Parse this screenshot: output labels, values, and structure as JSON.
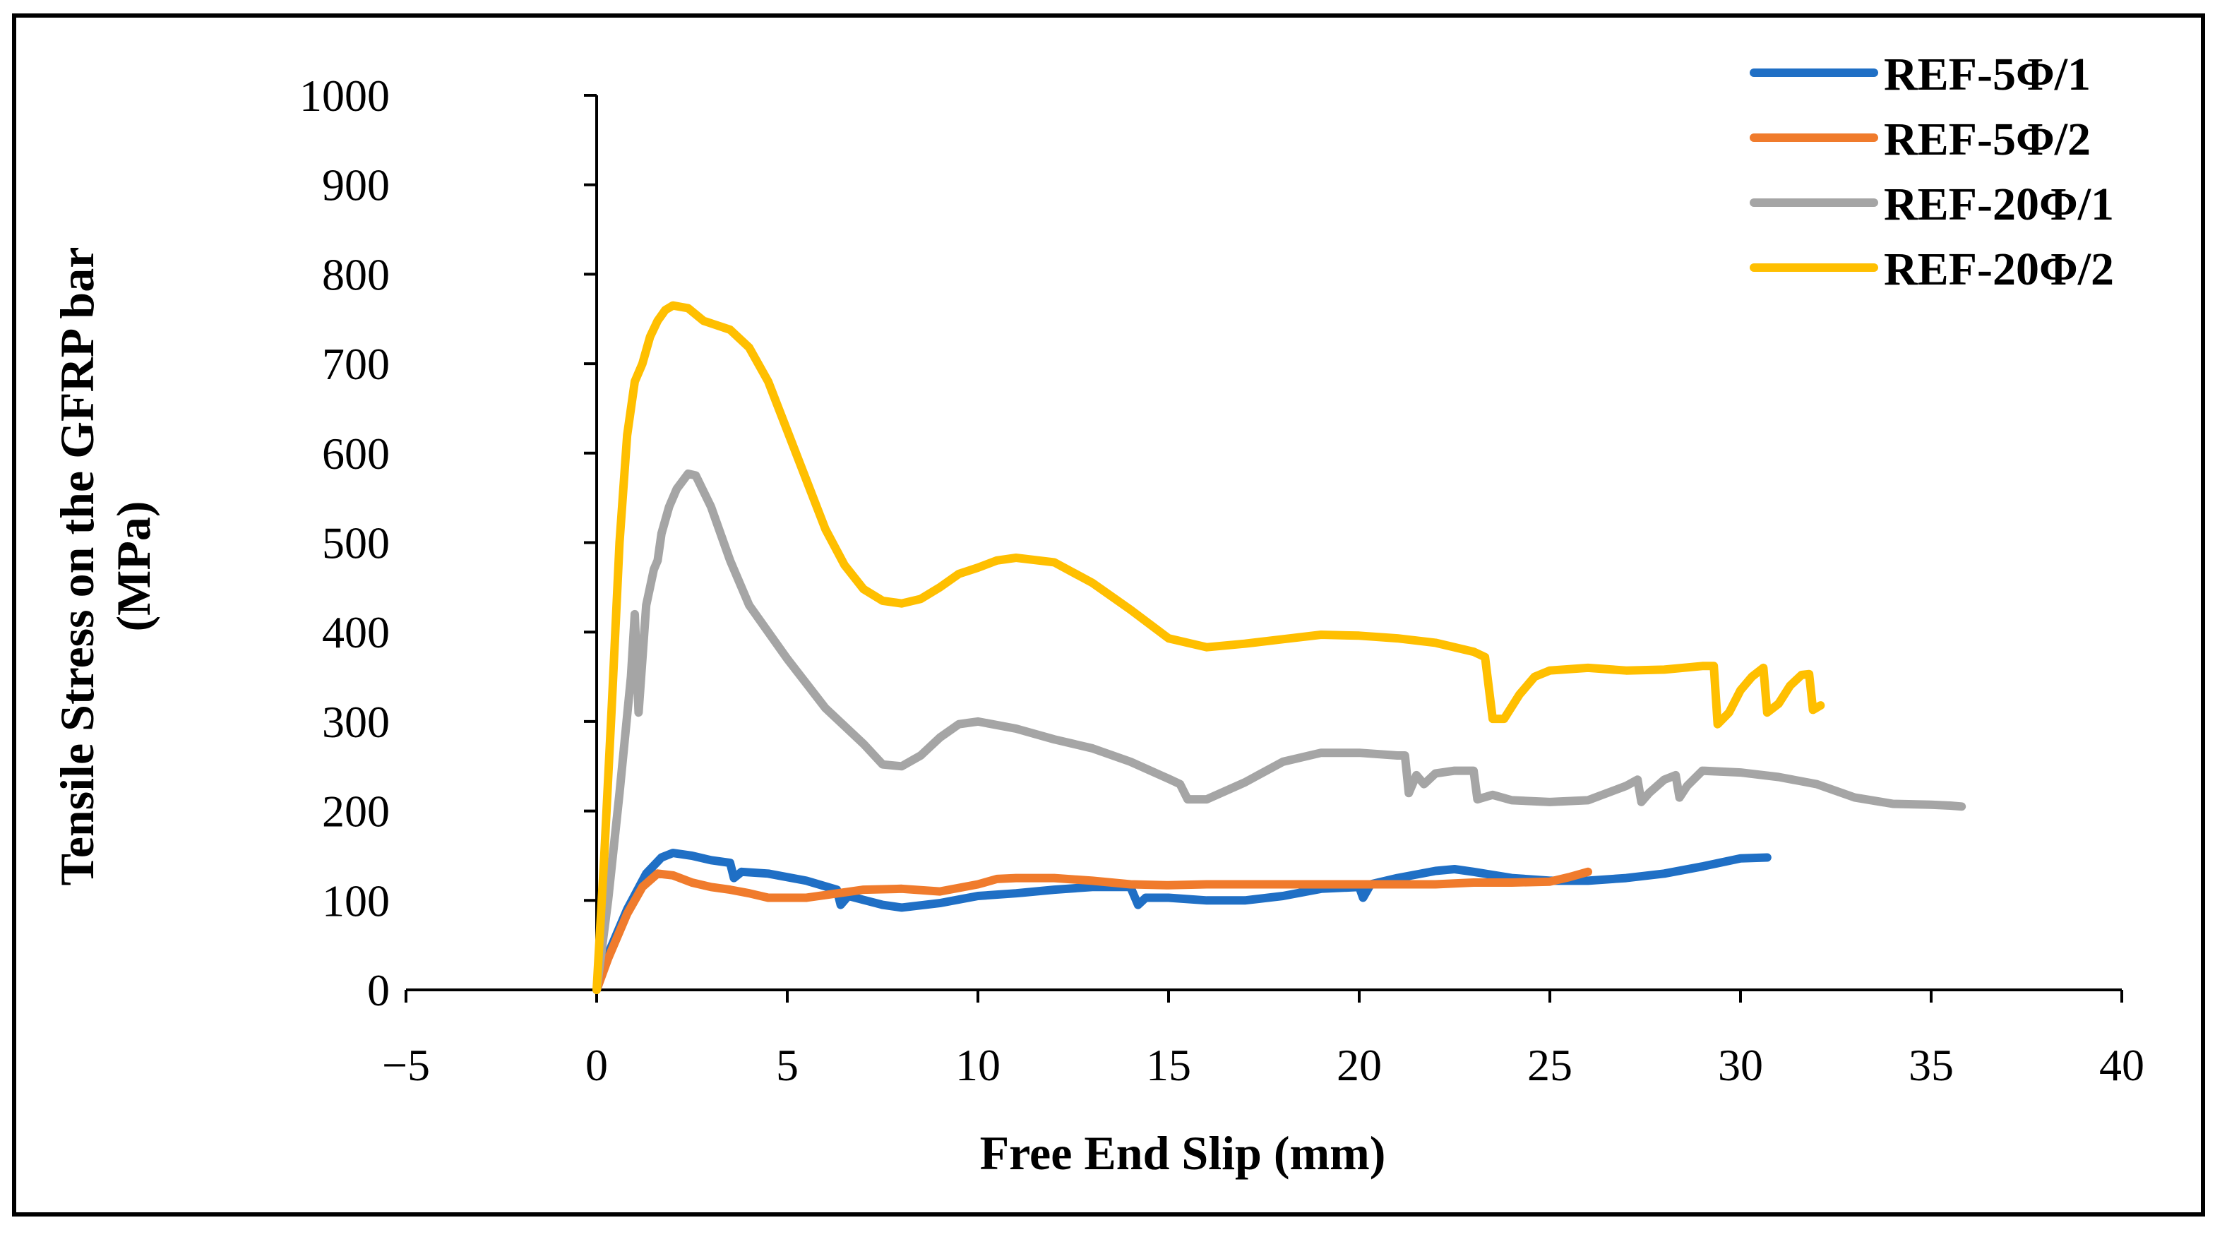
{
  "chart_data": {
    "type": "line",
    "title": "",
    "xlabel": "Free End Slip (mm)",
    "ylabel_lines": [
      "Tensile Stress on the GFRP bar",
      "(MPa)"
    ],
    "xlim": [
      -5,
      40
    ],
    "ylim": [
      0,
      1000
    ],
    "xticks": [
      -5,
      0,
      5,
      10,
      15,
      20,
      25,
      30,
      35,
      40
    ],
    "xtick_labels": [
      "−5",
      "0",
      "5",
      "10",
      "15",
      "20",
      "25",
      "30",
      "35",
      "40"
    ],
    "yticks": [
      0,
      100,
      200,
      300,
      400,
      500,
      600,
      700,
      800,
      900,
      1000
    ],
    "ytick_labels": [
      "0",
      "100",
      "200",
      "300",
      "400",
      "500",
      "600",
      "700",
      "800",
      "900",
      "1000"
    ],
    "grid": false,
    "legend_position": "top-right",
    "series": [
      {
        "name": "REF-5Φ/1",
        "color": "#1f6fc5",
        "points": [
          [
            0,
            0
          ],
          [
            0.3,
            40
          ],
          [
            0.8,
            90
          ],
          [
            1.3,
            130
          ],
          [
            1.7,
            148
          ],
          [
            2.0,
            153
          ],
          [
            2.5,
            150
          ],
          [
            3.0,
            145
          ],
          [
            3.5,
            142
          ],
          [
            3.6,
            125
          ],
          [
            3.8,
            132
          ],
          [
            4.5,
            130
          ],
          [
            5.5,
            122
          ],
          [
            6.3,
            112
          ],
          [
            6.4,
            95
          ],
          [
            6.6,
            105
          ],
          [
            7.5,
            95
          ],
          [
            8.0,
            92
          ],
          [
            9.0,
            97
          ],
          [
            10.0,
            105
          ],
          [
            11.0,
            108
          ],
          [
            12.0,
            112
          ],
          [
            13.0,
            115
          ],
          [
            14.0,
            115
          ],
          [
            14.2,
            95
          ],
          [
            14.4,
            103
          ],
          [
            15.0,
            103
          ],
          [
            16.0,
            100
          ],
          [
            17.0,
            100
          ],
          [
            18.0,
            105
          ],
          [
            19.0,
            113
          ],
          [
            20.0,
            115
          ],
          [
            20.1,
            103
          ],
          [
            20.3,
            118
          ],
          [
            21.0,
            125
          ],
          [
            22.0,
            133
          ],
          [
            22.5,
            135
          ],
          [
            23.0,
            132
          ],
          [
            24.0,
            125
          ],
          [
            25.0,
            122
          ],
          [
            26.0,
            122
          ],
          [
            27.0,
            125
          ],
          [
            28.0,
            130
          ],
          [
            29.0,
            138
          ],
          [
            30.0,
            147
          ],
          [
            30.7,
            148
          ]
        ]
      },
      {
        "name": "REF-5Φ/2",
        "color": "#f07b2c",
        "points": [
          [
            0,
            0
          ],
          [
            0.3,
            35
          ],
          [
            0.8,
            85
          ],
          [
            1.2,
            115
          ],
          [
            1.6,
            130
          ],
          [
            2.0,
            128
          ],
          [
            2.5,
            120
          ],
          [
            3.0,
            115
          ],
          [
            3.5,
            112
          ],
          [
            4.0,
            108
          ],
          [
            4.5,
            103
          ],
          [
            5.5,
            103
          ],
          [
            6.0,
            106
          ],
          [
            7.0,
            112
          ],
          [
            8.0,
            113
          ],
          [
            9.0,
            110
          ],
          [
            10.0,
            118
          ],
          [
            10.5,
            124
          ],
          [
            11.0,
            125
          ],
          [
            12.0,
            125
          ],
          [
            13.0,
            122
          ],
          [
            14.0,
            118
          ],
          [
            15.0,
            117
          ],
          [
            16.0,
            118
          ],
          [
            17.0,
            118
          ],
          [
            18.0,
            118
          ],
          [
            19.0,
            118
          ],
          [
            20.0,
            118
          ],
          [
            21.0,
            118
          ],
          [
            22.0,
            118
          ],
          [
            23.0,
            120
          ],
          [
            24.0,
            120
          ],
          [
            25.0,
            121
          ],
          [
            25.5,
            126
          ],
          [
            26.0,
            132
          ]
        ]
      },
      {
        "name": "REF-20Φ/1",
        "color": "#a5a5a5",
        "points": [
          [
            0,
            0
          ],
          [
            0.3,
            100
          ],
          [
            0.6,
            220
          ],
          [
            0.9,
            350
          ],
          [
            1.0,
            420
          ],
          [
            1.1,
            310
          ],
          [
            1.3,
            430
          ],
          [
            1.5,
            470
          ],
          [
            1.6,
            480
          ],
          [
            1.7,
            510
          ],
          [
            1.9,
            540
          ],
          [
            2.1,
            560
          ],
          [
            2.4,
            577
          ],
          [
            2.6,
            575
          ],
          [
            3.0,
            540
          ],
          [
            3.5,
            480
          ],
          [
            4.0,
            430
          ],
          [
            5.0,
            370
          ],
          [
            6.0,
            315
          ],
          [
            7.0,
            275
          ],
          [
            7.5,
            252
          ],
          [
            8.0,
            250
          ],
          [
            8.5,
            262
          ],
          [
            9.0,
            282
          ],
          [
            9.5,
            297
          ],
          [
            10.0,
            300
          ],
          [
            11.0,
            292
          ],
          [
            12.0,
            280
          ],
          [
            13.0,
            270
          ],
          [
            14.0,
            255
          ],
          [
            15.0,
            236
          ],
          [
            15.3,
            230
          ],
          [
            15.5,
            213
          ],
          [
            16.0,
            213
          ],
          [
            17.0,
            232
          ],
          [
            18.0,
            255
          ],
          [
            19.0,
            265
          ],
          [
            20.0,
            265
          ],
          [
            21.0,
            262
          ],
          [
            21.2,
            262
          ],
          [
            21.3,
            220
          ],
          [
            21.5,
            240
          ],
          [
            21.7,
            230
          ],
          [
            22.0,
            242
          ],
          [
            22.5,
            245
          ],
          [
            23.0,
            245
          ],
          [
            23.1,
            213
          ],
          [
            23.5,
            218
          ],
          [
            24.0,
            212
          ],
          [
            25.0,
            210
          ],
          [
            26.0,
            212
          ],
          [
            27.0,
            228
          ],
          [
            27.3,
            235
          ],
          [
            27.4,
            210
          ],
          [
            27.6,
            220
          ],
          [
            28.0,
            235
          ],
          [
            28.3,
            240
          ],
          [
            28.4,
            215
          ],
          [
            28.6,
            228
          ],
          [
            29.0,
            245
          ],
          [
            30.0,
            243
          ],
          [
            31.0,
            238
          ],
          [
            32.0,
            230
          ],
          [
            33.0,
            215
          ],
          [
            34.0,
            208
          ],
          [
            35.0,
            207
          ],
          [
            35.5,
            206
          ],
          [
            35.8,
            205
          ]
        ]
      },
      {
        "name": "REF-20Φ/2",
        "color": "#ffbf00",
        "points": [
          [
            0,
            0
          ],
          [
            0.2,
            150
          ],
          [
            0.4,
            320
          ],
          [
            0.6,
            500
          ],
          [
            0.8,
            620
          ],
          [
            1.0,
            680
          ],
          [
            1.2,
            700
          ],
          [
            1.4,
            730
          ],
          [
            1.6,
            748
          ],
          [
            1.8,
            760
          ],
          [
            2.0,
            765
          ],
          [
            2.4,
            762
          ],
          [
            2.8,
            748
          ],
          [
            3.5,
            738
          ],
          [
            4.0,
            718
          ],
          [
            4.5,
            680
          ],
          [
            5.0,
            625
          ],
          [
            5.5,
            570
          ],
          [
            6.0,
            515
          ],
          [
            6.5,
            475
          ],
          [
            7.0,
            448
          ],
          [
            7.5,
            435
          ],
          [
            8.0,
            432
          ],
          [
            8.5,
            437
          ],
          [
            9.0,
            450
          ],
          [
            9.5,
            465
          ],
          [
            10.0,
            472
          ],
          [
            10.5,
            480
          ],
          [
            11.0,
            483
          ],
          [
            12.0,
            478
          ],
          [
            13.0,
            455
          ],
          [
            14.0,
            425
          ],
          [
            15.0,
            393
          ],
          [
            16.0,
            383
          ],
          [
            17.0,
            387
          ],
          [
            18.0,
            392
          ],
          [
            19.0,
            397
          ],
          [
            20.0,
            396
          ],
          [
            21.0,
            393
          ],
          [
            22.0,
            388
          ],
          [
            23.0,
            378
          ],
          [
            23.3,
            372
          ],
          [
            23.5,
            303
          ],
          [
            23.8,
            303
          ],
          [
            24.2,
            330
          ],
          [
            24.6,
            350
          ],
          [
            25.0,
            357
          ],
          [
            26.0,
            360
          ],
          [
            27.0,
            357
          ],
          [
            28.0,
            358
          ],
          [
            29.0,
            362
          ],
          [
            29.3,
            362
          ],
          [
            29.4,
            297
          ],
          [
            29.7,
            310
          ],
          [
            30.0,
            335
          ],
          [
            30.3,
            350
          ],
          [
            30.6,
            360
          ],
          [
            30.7,
            310
          ],
          [
            31.0,
            320
          ],
          [
            31.3,
            340
          ],
          [
            31.6,
            352
          ],
          [
            31.8,
            353
          ],
          [
            31.9,
            313
          ],
          [
            32.1,
            318
          ]
        ]
      }
    ]
  }
}
